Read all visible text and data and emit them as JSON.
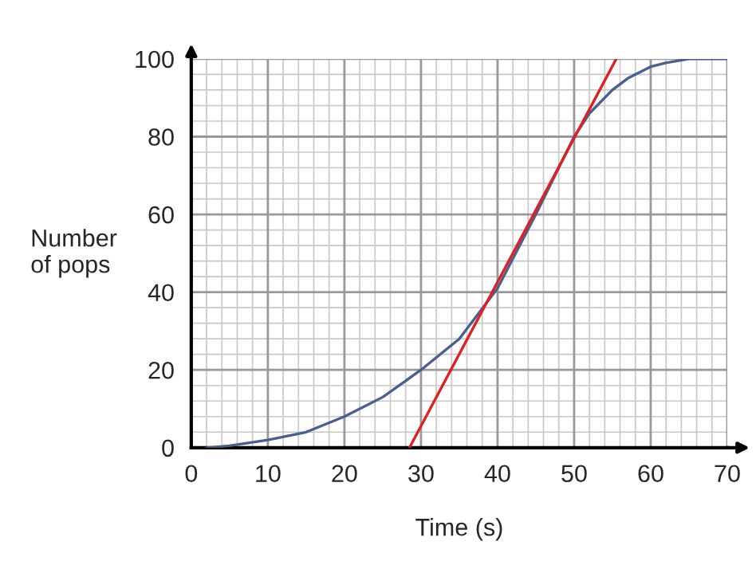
{
  "chart_data": {
    "type": "line",
    "xlabel": "Time (s)",
    "ylabel": "Number\nof pops",
    "series": [
      {
        "color": "#4a5f8f",
        "x": [
          2,
          5,
          10,
          15,
          20,
          25,
          30,
          35,
          40,
          45,
          48,
          50,
          52,
          55,
          57,
          60,
          62,
          65,
          70
        ],
        "values": [
          0,
          0.5,
          2,
          4,
          8,
          13,
          20,
          28,
          41,
          60,
          72,
          80,
          86,
          92,
          95,
          98,
          99,
          100,
          100
        ]
      },
      {
        "color": "#e02020",
        "type": "line",
        "x": [
          28.5,
          55.5
        ],
        "values": [
          0,
          100
        ]
      }
    ],
    "xlim": [
      0,
      70
    ],
    "ylim": [
      0,
      100
    ],
    "xticks": [
      0,
      10,
      20,
      30,
      40,
      50,
      60,
      70
    ],
    "yticks": [
      0,
      20,
      40,
      60,
      80,
      100
    ],
    "grid": true
  }
}
